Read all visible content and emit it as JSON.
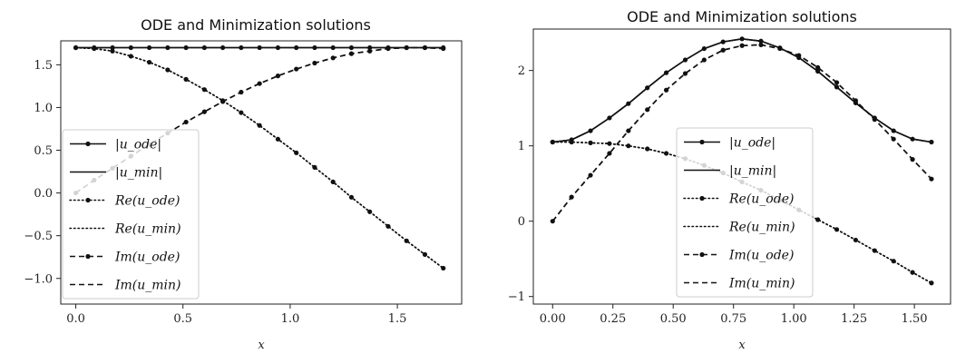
{
  "chart_data": [
    {
      "type": "line",
      "title": "ODE and Minimization solutions",
      "xlabel": "x",
      "ylabel": "",
      "xlim": [
        -0.07,
        1.8
      ],
      "ylim": [
        -1.3,
        1.78
      ],
      "xticks": [
        "0.0",
        "0.5",
        "1.0",
        "1.5"
      ],
      "xtick_values": [
        0.0,
        0.5,
        1.0,
        1.5
      ],
      "yticks": [
        "1.5",
        "1.0",
        "0.5",
        "0.0",
        "−0.5",
        "−1.0"
      ],
      "ytick_values": [
        1.5,
        1.0,
        0.5,
        0.0,
        -0.5,
        -1.0
      ],
      "legend_position": "center-left",
      "legend": [
        "|u_ode|",
        "|u_min|",
        "Re(u_ode)",
        "Re(u_min)",
        "Im(u_ode)",
        "Im(u_min)"
      ],
      "x": [
        0.0,
        0.0857,
        0.1714,
        0.2571,
        0.3429,
        0.4286,
        0.5143,
        0.6,
        0.6857,
        0.7714,
        0.8571,
        0.9429,
        1.0286,
        1.1143,
        1.2,
        1.2857,
        1.3714,
        1.4571,
        1.5429,
        1.6286,
        1.7143
      ],
      "series": [
        {
          "name": "|u_ode|",
          "style": "solid",
          "marker": true,
          "values": [
            1.7,
            1.7,
            1.7,
            1.7,
            1.7,
            1.7,
            1.7,
            1.7,
            1.7,
            1.7,
            1.7,
            1.7,
            1.7,
            1.7,
            1.7,
            1.7,
            1.7,
            1.7,
            1.7,
            1.7,
            1.7
          ]
        },
        {
          "name": "|u_min|",
          "style": "solid",
          "marker": false,
          "values": [
            1.7,
            1.7,
            1.7,
            1.7,
            1.7,
            1.7,
            1.7,
            1.7,
            1.7,
            1.7,
            1.7,
            1.7,
            1.7,
            1.7,
            1.7,
            1.7,
            1.7,
            1.7,
            1.7,
            1.7,
            1.7
          ]
        },
        {
          "name": "Re(u_ode)",
          "style": "dotted",
          "marker": true,
          "values": [
            1.7,
            1.69,
            1.66,
            1.6,
            1.53,
            1.44,
            1.33,
            1.21,
            1.08,
            0.94,
            0.79,
            0.63,
            0.47,
            0.3,
            0.13,
            -0.05,
            -0.22,
            -0.39,
            -0.56,
            -0.72,
            -0.88
          ]
        },
        {
          "name": "Re(u_min)",
          "style": "dotted",
          "marker": false,
          "values": [
            1.7,
            1.69,
            1.66,
            1.6,
            1.53,
            1.44,
            1.33,
            1.21,
            1.08,
            0.94,
            0.79,
            0.63,
            0.47,
            0.3,
            0.13,
            -0.05,
            -0.22,
            -0.39,
            -0.56,
            -0.72,
            -0.88
          ]
        },
        {
          "name": "Im(u_ode)",
          "style": "dashed",
          "marker": true,
          "values": [
            0.0,
            0.15,
            0.29,
            0.43,
            0.57,
            0.7,
            0.83,
            0.95,
            1.07,
            1.18,
            1.28,
            1.37,
            1.45,
            1.52,
            1.58,
            1.63,
            1.66,
            1.69,
            1.7,
            1.7,
            1.69
          ]
        },
        {
          "name": "Im(u_min)",
          "style": "dashed",
          "marker": false,
          "values": [
            0.0,
            0.15,
            0.29,
            0.43,
            0.57,
            0.7,
            0.83,
            0.95,
            1.07,
            1.18,
            1.28,
            1.37,
            1.45,
            1.52,
            1.58,
            1.63,
            1.66,
            1.69,
            1.7,
            1.7,
            1.69
          ]
        }
      ]
    },
    {
      "type": "line",
      "title": "ODE and Minimization solutions",
      "xlabel": "x",
      "ylabel": "",
      "xlim": [
        -0.08,
        1.65
      ],
      "ylim": [
        -1.1,
        2.55
      ],
      "xticks": [
        "0.00",
        "0.25",
        "0.50",
        "0.75",
        "1.00",
        "1.25",
        "1.50"
      ],
      "xtick_values": [
        0.0,
        0.25,
        0.5,
        0.75,
        1.0,
        1.25,
        1.5
      ],
      "yticks": [
        "2",
        "1",
        "0",
        "−1"
      ],
      "ytick_values": [
        2,
        1,
        0,
        -1
      ],
      "legend_position": "center-right",
      "legend": [
        "|u_ode|",
        "|u_min|",
        "Re(u_ode)",
        "Re(u_min)",
        "Im(u_ode)",
        "Im(u_min)"
      ],
      "x": [
        0.0,
        0.0785,
        0.1571,
        0.2356,
        0.3142,
        0.3927,
        0.4712,
        0.5498,
        0.6283,
        0.7069,
        0.7854,
        0.8639,
        0.9425,
        1.021,
        1.0996,
        1.1781,
        1.2566,
        1.3352,
        1.4137,
        1.4923,
        1.5708
      ],
      "series": [
        {
          "name": "|u_ode|",
          "style": "solid",
          "marker": true,
          "values": [
            1.05,
            1.08,
            1.2,
            1.37,
            1.56,
            1.77,
            1.97,
            2.14,
            2.29,
            2.38,
            2.42,
            2.39,
            2.3,
            2.17,
            1.99,
            1.78,
            1.57,
            1.37,
            1.2,
            1.09,
            1.05
          ]
        },
        {
          "name": "|u_min|",
          "style": "solid",
          "marker": false,
          "values": [
            1.05,
            1.08,
            1.2,
            1.37,
            1.56,
            1.77,
            1.97,
            2.14,
            2.29,
            2.38,
            2.42,
            2.39,
            2.3,
            2.17,
            1.99,
            1.78,
            1.57,
            1.37,
            1.2,
            1.09,
            1.05
          ]
        },
        {
          "name": "Re(u_ode)",
          "style": "dotted",
          "marker": true,
          "values": [
            1.05,
            1.05,
            1.04,
            1.03,
            1.0,
            0.96,
            0.9,
            0.83,
            0.74,
            0.64,
            0.52,
            0.41,
            0.28,
            0.15,
            0.02,
            -0.11,
            -0.25,
            -0.39,
            -0.53,
            -0.68,
            -0.82
          ]
        },
        {
          "name": "Re(u_min)",
          "style": "dotted",
          "marker": false,
          "values": [
            1.05,
            1.05,
            1.04,
            1.03,
            1.0,
            0.96,
            0.9,
            0.83,
            0.74,
            0.64,
            0.52,
            0.41,
            0.28,
            0.15,
            0.02,
            -0.11,
            -0.25,
            -0.39,
            -0.53,
            -0.68,
            -0.82
          ]
        },
        {
          "name": "Im(u_ode)",
          "style": "dashed",
          "marker": true,
          "values": [
            0.0,
            0.32,
            0.61,
            0.9,
            1.2,
            1.48,
            1.74,
            1.96,
            2.14,
            2.27,
            2.33,
            2.34,
            2.29,
            2.2,
            2.04,
            1.84,
            1.6,
            1.35,
            1.09,
            0.82,
            0.56
          ]
        },
        {
          "name": "Im(u_min)",
          "style": "dashed",
          "marker": false,
          "values": [
            0.0,
            0.32,
            0.61,
            0.9,
            1.2,
            1.48,
            1.74,
            1.96,
            2.14,
            2.27,
            2.33,
            2.34,
            2.29,
            2.2,
            2.04,
            1.84,
            1.6,
            1.35,
            1.09,
            0.82,
            0.56
          ]
        }
      ]
    }
  ]
}
